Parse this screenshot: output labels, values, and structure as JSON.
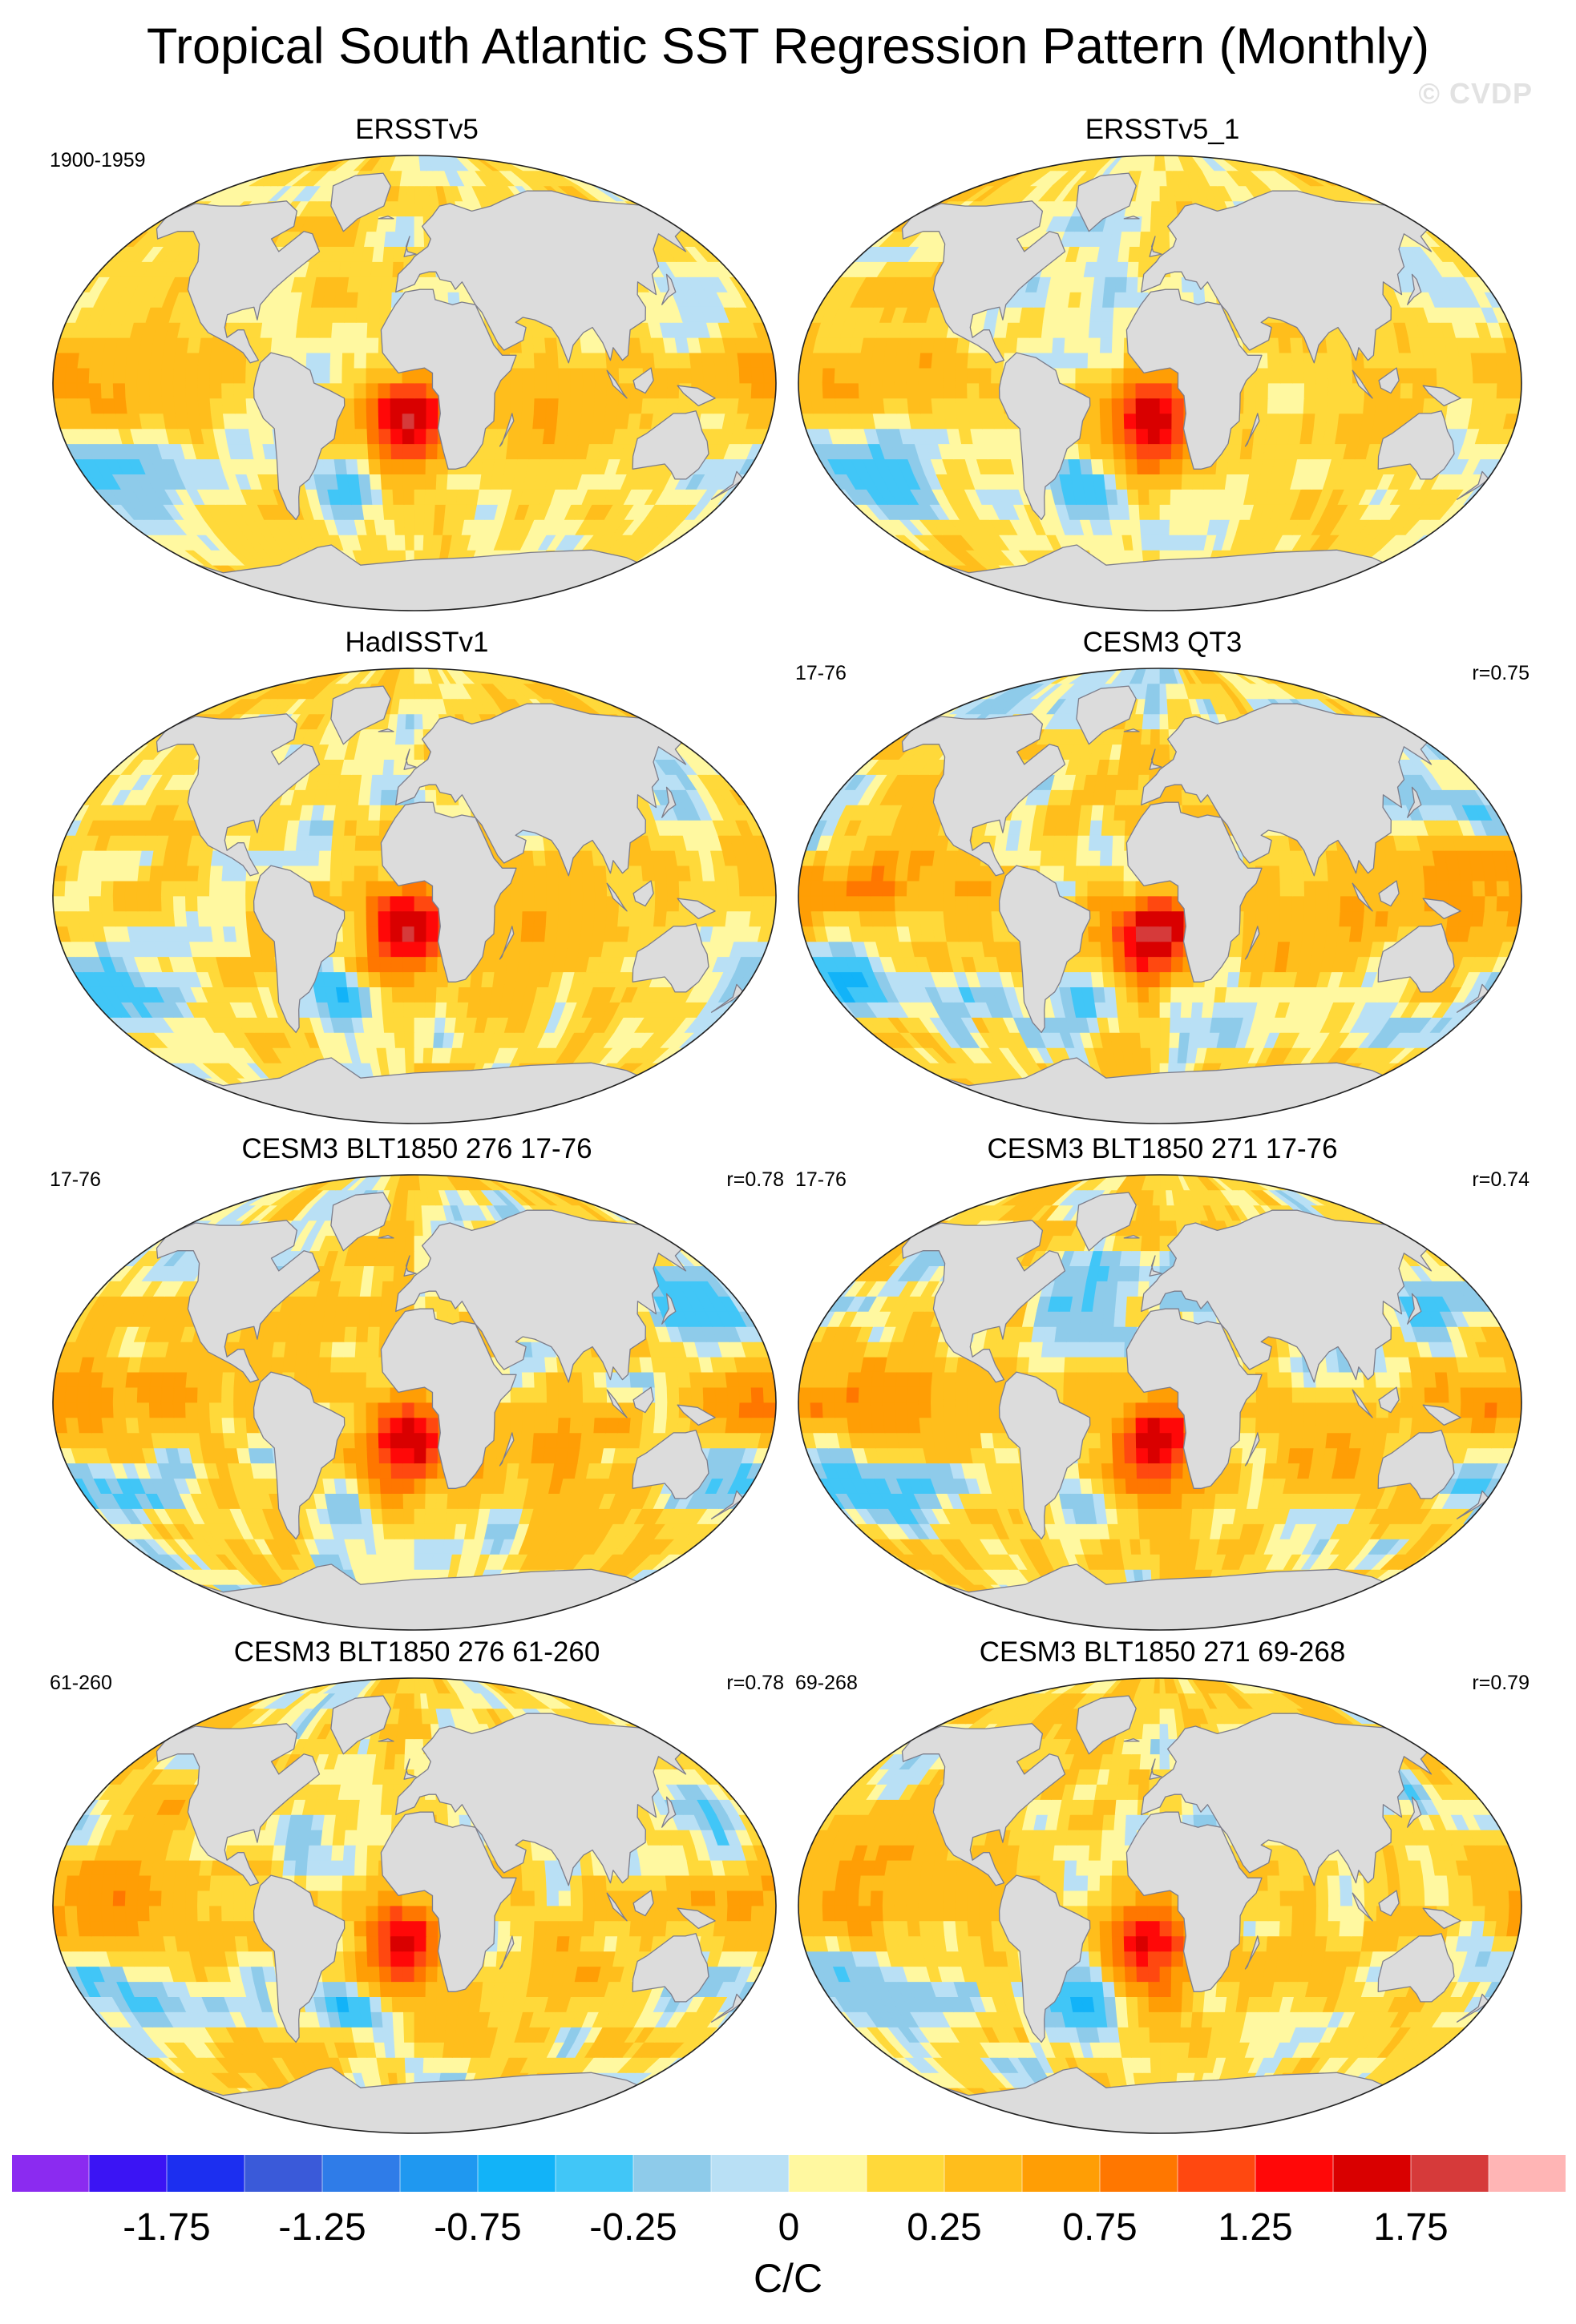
{
  "title": "Tropical South Atlantic SST Regression Pattern (Monthly)",
  "watermark": "© CVDP",
  "chart_data": {
    "type": "heatmap",
    "title": "Tropical South Atlantic SST Regression Pattern (Monthly)",
    "projection": "Robinson (global)",
    "panels": [
      {
        "title": "ERSSTv5",
        "left_label": "1900-1959",
        "right_label": "",
        "pattern_correlation": null
      },
      {
        "title": "ERSSTv5_1",
        "left_label": "",
        "right_label": "",
        "pattern_correlation": null
      },
      {
        "title": "HadISSTv1",
        "left_label": "",
        "right_label": "",
        "pattern_correlation": null
      },
      {
        "title": "CESM3 QT3",
        "left_label": "17-76",
        "right_label": "r=0.75",
        "pattern_correlation": 0.75
      },
      {
        "title": "CESM3 BLT1850 276 17-76",
        "left_label": "17-76",
        "right_label": "r=0.78",
        "pattern_correlation": 0.78
      },
      {
        "title": "CESM3 BLT1850 271 17-76",
        "left_label": "17-76",
        "right_label": "r=0.74",
        "pattern_correlation": 0.74
      },
      {
        "title": "CESM3 BLT1850 276 61-260",
        "left_label": "61-260",
        "right_label": "r=0.78",
        "pattern_correlation": 0.78
      },
      {
        "title": "CESM3 BLT1850 271 69-268",
        "left_label": "69-268",
        "right_label": "r=0.79",
        "pattern_correlation": 0.79
      }
    ],
    "colorbar": {
      "units": "C/C",
      "levels": [
        -2,
        -1.75,
        -1.5,
        -1.25,
        -1,
        -0.75,
        -0.5,
        -0.25,
        -0.1,
        0,
        0.1,
        0.25,
        0.5,
        0.75,
        1,
        1.25,
        1.5,
        1.75,
        2
      ],
      "colors": [
        "#8b2bf0",
        "#3b14f4",
        "#1c2ff0",
        "#3a5ad9",
        "#2f7ce8",
        "#1f98f0",
        "#12b3f8",
        "#41c6f7",
        "#8ecbea",
        "#b9e0f5",
        "#fff8a0",
        "#ffd93a",
        "#ffbe1c",
        "#ff9e05",
        "#ff7700",
        "#ff4810",
        "#ff0808",
        "#d90000",
        "#d63a3a",
        "#ffb5b5"
      ],
      "tick_labels": [
        "-1.75",
        "-1.25",
        "-0.75",
        "-0.25",
        "0",
        "0.25",
        "0.75",
        "1.25",
        "1.75"
      ],
      "tick_values": [
        -1.75,
        -1.25,
        -0.75,
        -0.25,
        0,
        0.25,
        0.75,
        1.25,
        1.75
      ]
    }
  }
}
